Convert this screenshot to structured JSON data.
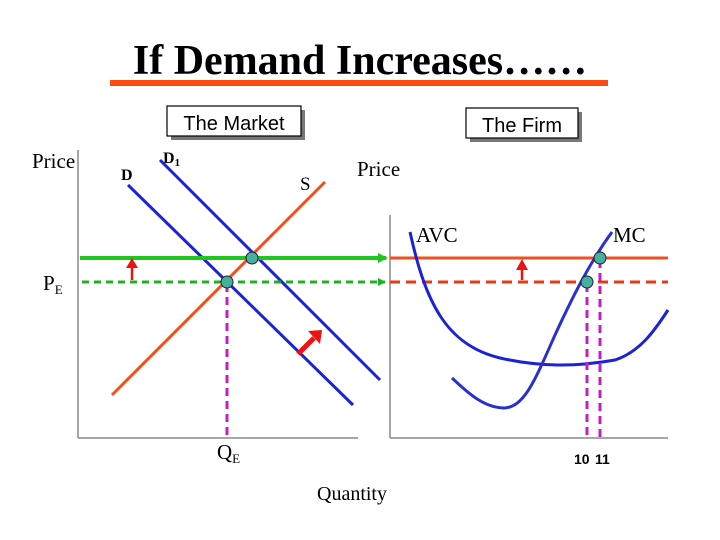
{
  "title": "If Demand Increases……",
  "colors": {
    "title_underline": "#ff4b12",
    "supply": "#f0501c",
    "demand": "#1c22d8",
    "new_price": "#1ec61e",
    "eq_line": "#20b020",
    "qty_line": "#c020c0",
    "mc": "#2a30d0",
    "arrow": "#ee1111",
    "point": "#46b0a0",
    "box_shadow": "#777777"
  },
  "market": {
    "box_label": "The Market",
    "price_label": "Price",
    "demand_label": "D",
    "demand_new_label": "D",
    "demand_new_sub": "1",
    "supply_label": "S",
    "pe_label": "P",
    "pe_sub": "E",
    "qe_label": "Q",
    "qe_sub": "E"
  },
  "firm": {
    "box_label": "The Firm",
    "price_label": "Price",
    "avc_label": "AVC",
    "mc_label": "MC",
    "q1_label": "10",
    "q2_label": "11"
  },
  "quantity_label": "Quantity"
}
